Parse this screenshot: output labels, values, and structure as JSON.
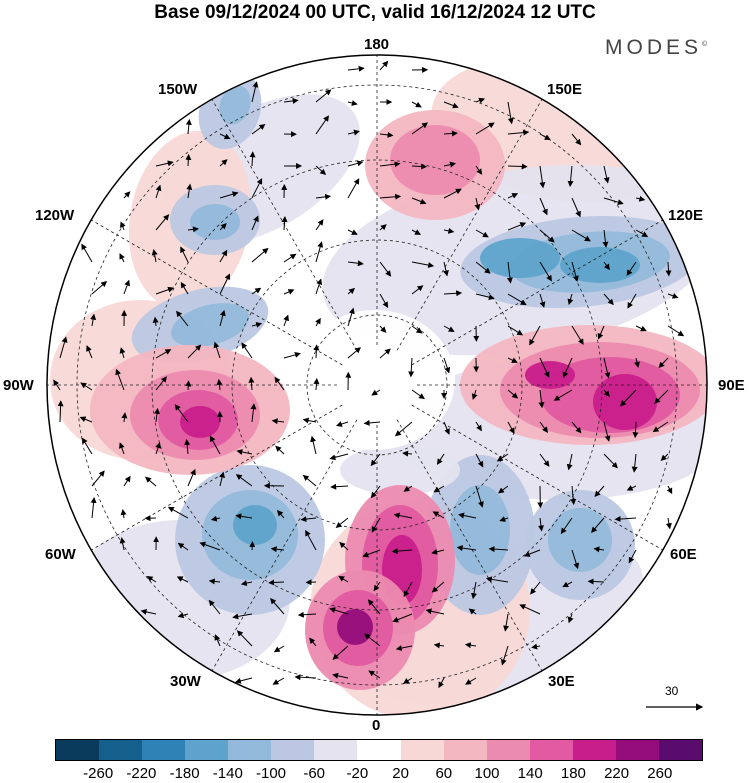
{
  "title": "Base 09/12/2024 00 UTC, valid 16/12/2024 12 UTC",
  "brand": "MODES",
  "brand_mark": "©",
  "longitude_labels": {
    "top": "180",
    "bottom": "0",
    "left": "90W",
    "right": "90E",
    "upper_left_1": "150W",
    "upper_left_2": "120W",
    "lower_left_1": "60W",
    "lower_left_2": "30W",
    "upper_right_1": "150E",
    "upper_right_2": "120E",
    "lower_right_1": "60E",
    "lower_right_2": "30E"
  },
  "reference_vector": {
    "label": "30"
  },
  "colorbar": {
    "colors": [
      "#0b3b5c",
      "#155f8c",
      "#2f82b6",
      "#5ea3cc",
      "#93b9da",
      "#bcc8e3",
      "#e4e3ef",
      "#ffffff",
      "#f8d8d6",
      "#f3b7c2",
      "#ec8bb0",
      "#e25aa1",
      "#c81e8b",
      "#950d7b",
      "#5a0b6e"
    ],
    "tick_labels": [
      "-260",
      "-220",
      "-180",
      "-140",
      "-100",
      "-60",
      "-20",
      "20",
      "60",
      "100",
      "140",
      "180",
      "220",
      "260"
    ]
  },
  "map_data": {
    "projection": "north-polar-stereographic",
    "field": "geopotential height anomaly",
    "vectors": "wind"
  }
}
